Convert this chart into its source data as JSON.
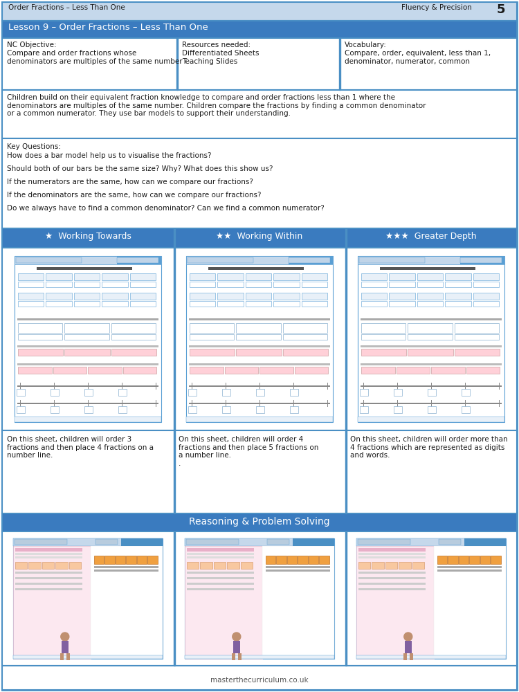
{
  "page_title_left": "Order Fractions – Less Than One",
  "page_title_right": "Fluency & Precision",
  "page_number": "5",
  "lesson_title": "Lesson 9 – Order Fractions – Less Than One",
  "nc_objective_title": "NC Objective:",
  "nc_objective_text": "Compare and order fractions whose\ndenominators are multiples of the same number",
  "resources_title": "Resources needed:",
  "resources_text": "Differentiated Sheets\nTeaching Slides",
  "vocabulary_title": "Vocabulary:",
  "vocabulary_text": "Compare, order, equivalent, less than 1,\ndenominator, numerator, common",
  "description_text": "Children build on their equivalent fraction knowledge to compare and order fractions less than 1 where the\ndenominators are multiples of the same number. Children compare the fractions by finding a common denominator\nor a common numerator. They use bar models to support their understanding.",
  "key_questions_title": "Key Questions:",
  "key_questions": [
    "How does a bar model help us to visualise the fractions?",
    "Should both of our bars be the same size? Why? What does this show us?",
    "If the numerators are the same, how can we compare our fractions?",
    "If the denominators are the same, how can we compare our fractions?",
    "Do we always have to find a common denominator? Can we find a common numerator?"
  ],
  "working_towards": "★  Working Towards",
  "working_within": "★★  Working Within",
  "greater_depth": "★★★  Greater Depth",
  "wt_description": "On this sheet, children will order 3\nfractions and then place 4 fractions on a\nnumber line.",
  "ww_description": "On this sheet, children will order 4\nfractions and then place 5 fractions on\na number line.\n.",
  "gd_description": "On this sheet, children will order more than\n4 fractions which are represented as digits\nand words.",
  "reasoning_title": "Reasoning & Problem Solving",
  "footer_text": "masterthecurriculum.co.uk",
  "header_bg": "#c5d8eb",
  "blue_dark": "#3a7bbf",
  "blue_light": "#dce9f5",
  "blue_medium": "#5a9fd4",
  "blue_border": "#4a8fc4",
  "white": "#ffffff",
  "black": "#000000",
  "text_color": "#1a1a1a",
  "thumb_border": "#7ab0d4",
  "pink_bar": "#f0c8d8",
  "pink_light": "#fce8f0"
}
